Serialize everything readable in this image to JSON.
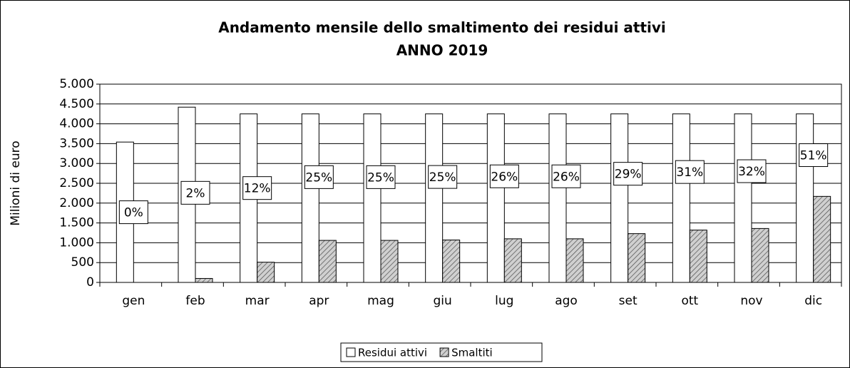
{
  "chart_data": {
    "type": "bar",
    "title": "Andamento mensile dello smaltimento dei residui attivi",
    "subtitle": "ANNO 2019",
    "y_label": "Milioni di euro",
    "categories": [
      "gen",
      "feb",
      "mar",
      "apr",
      "mag",
      "giu",
      "lug",
      "ago",
      "set",
      "ott",
      "nov",
      "dic"
    ],
    "series": [
      {
        "name": "Residui attivi",
        "color": "#ffffff",
        "values": [
          3540,
          4420,
          4250,
          4250,
          4250,
          4250,
          4250,
          4250,
          4250,
          4250,
          4250,
          4250
        ]
      },
      {
        "name": "Smaltiti",
        "color": "#c8c8c8",
        "values": [
          0,
          100,
          510,
          1060,
          1060,
          1070,
          1100,
          1100,
          1230,
          1320,
          1360,
          2170
        ]
      }
    ],
    "annotations": [
      "0%",
      "2%",
      "12%",
      "25%",
      "25%",
      "25%",
      "26%",
      "26%",
      "29%",
      "31%",
      "32%",
      "51%"
    ],
    "ylim": [
      0,
      5000
    ],
    "yticks": [
      0,
      500,
      {
        "value": 1000,
        "label": "1.000"
      },
      {
        "value": 1500,
        "label": "1.500"
      },
      {
        "value": 2000,
        "label": "2.000"
      },
      {
        "value": 2500,
        "label": "2.500"
      },
      {
        "value": 3000,
        "label": "3.000"
      },
      {
        "value": 3500,
        "label": "3.500"
      },
      {
        "value": 4000,
        "label": "4.000"
      },
      {
        "value": 4500,
        "label": "4.500"
      },
      {
        "value": 5000,
        "label": "5.000"
      }
    ],
    "grid": true,
    "legend": "bottom"
  }
}
